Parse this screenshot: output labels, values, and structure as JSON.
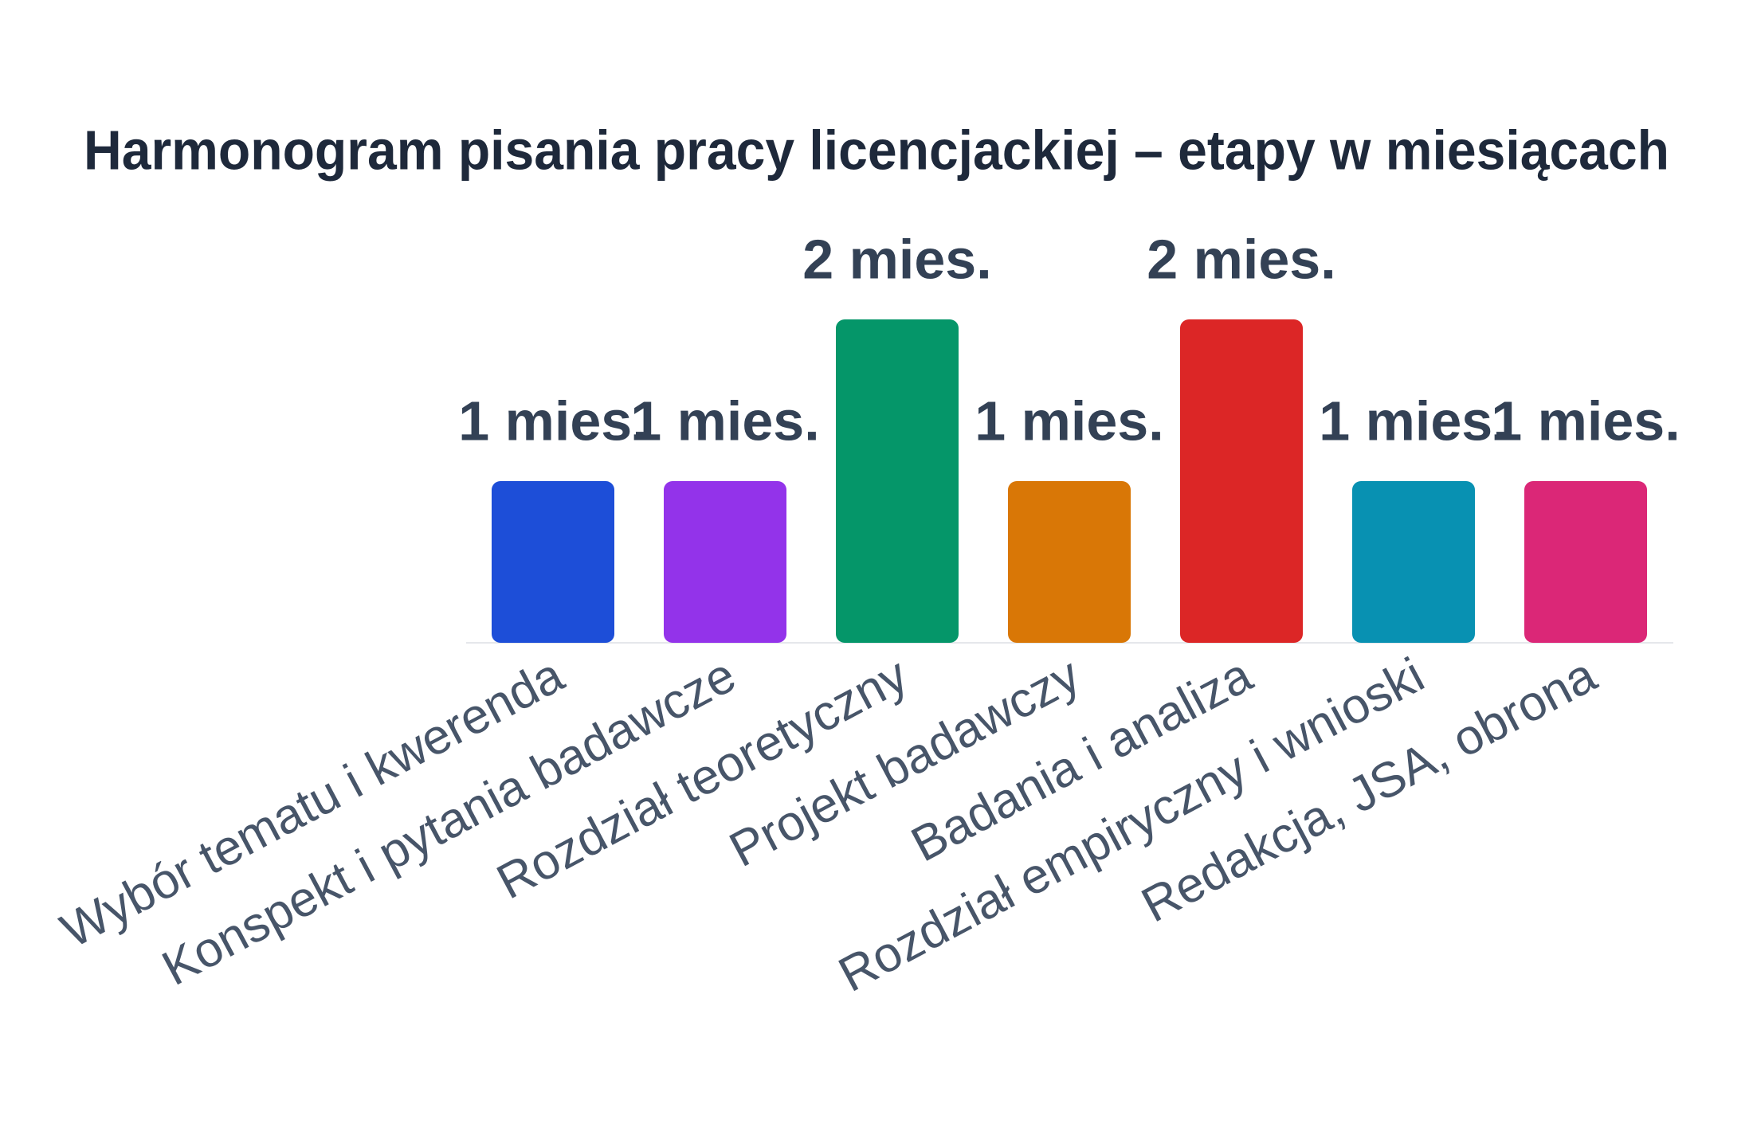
{
  "chart_data": {
    "type": "bar",
    "title": "Harmonogram pisania pracy licencjackiej – etapy w miesiącach",
    "categories": [
      "Wybór tematu i kwerenda",
      "Konspekt i pytania badawcze",
      "Rozdział teoretyczny",
      "Projekt badawczy",
      "Badania i analiza",
      "Rozdział empiryczny i wnioski",
      "Redakcja, JSA, obrona"
    ],
    "values": [
      1,
      1,
      2,
      1,
      2,
      1,
      1
    ],
    "value_labels": [
      "1 mies.",
      "1 mies.",
      "2 mies.",
      "1 mies.",
      "2 mies.",
      "1 mies.",
      "1 mies."
    ],
    "colors": [
      "#1d4ed8",
      "#9333ea",
      "#059669",
      "#d97706",
      "#dc2626",
      "#0891b2",
      "#db2777"
    ]
  }
}
